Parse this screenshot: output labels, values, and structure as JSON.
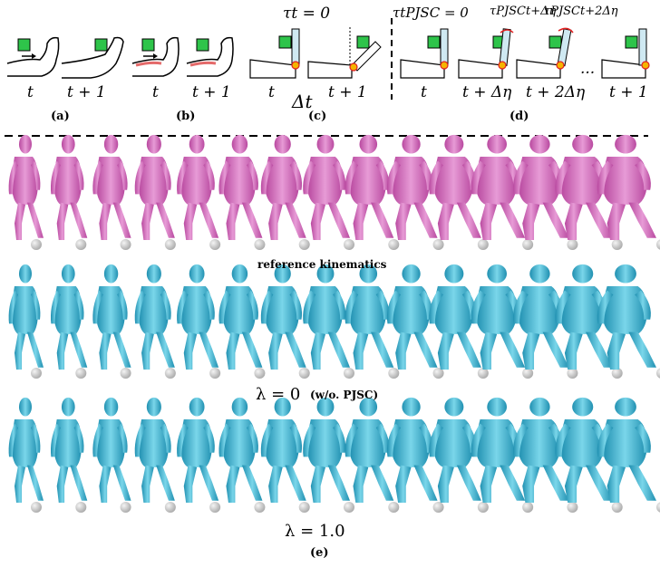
{
  "panels": {
    "a": {
      "label": "(a)",
      "t": "t",
      "t1": "t + 1"
    },
    "b": {
      "label": "(b)",
      "t": "t",
      "t1": "t + 1"
    },
    "c": {
      "label": "(c)",
      "tau": "τt = 0",
      "t": "t",
      "t1": "t + 1",
      "dt": "Δt"
    },
    "d": {
      "label": "(d)",
      "tau0": "τtPJSC = 0",
      "tau1": "τPJSCt+Δη",
      "tau2": "τPJSCt+2Δη",
      "t": "t",
      "t1": "t + Δη",
      "t2": "t + 2Δη",
      "dots": "...",
      "t3": "t + 1"
    }
  },
  "rows": {
    "reference_caption": "reference kinematics",
    "lambda0": "λ = 0",
    "lambda0_note": "(w/o. PJSC)",
    "lambda1": "λ = 1.0",
    "label_e": "(e)"
  },
  "colors": {
    "pink": "#d978c6",
    "blue": "#4dbfd8",
    "green": "#2ec44a",
    "ball": "#c8c8c8"
  }
}
